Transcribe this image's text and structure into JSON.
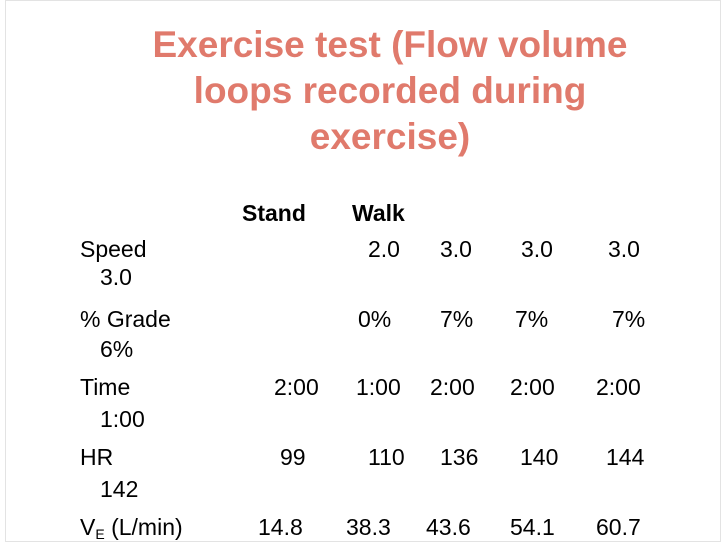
{
  "slide": {
    "title_lines": [
      "Exercise test (Flow volume",
      "loops recorded during",
      "exercise)"
    ]
  },
  "table": {
    "headers": [
      "Stand",
      "Walk"
    ],
    "rows": [
      {
        "label": "Speed",
        "values": [
          "",
          "2.0",
          "3.0",
          "3.0",
          "3.0"
        ],
        "overflow": "3.0"
      },
      {
        "label": "% Grade",
        "values": [
          "",
          "0%",
          "7%",
          "7%",
          "7%"
        ],
        "overflow": "6%"
      },
      {
        "label": "Time",
        "values": [
          "2:00",
          "1:00",
          "2:00",
          "2:00",
          "2:00"
        ],
        "overflow": "1:00"
      },
      {
        "label": "HR",
        "values": [
          "99",
          "110",
          "136",
          "140",
          "144"
        ],
        "overflow": "142"
      },
      {
        "label_main": "V",
        "label_sub": "E",
        "label_unit": " (L/min)",
        "values": [
          "14.8",
          "38.3",
          "43.6",
          "54.1",
          "60.7"
        ]
      }
    ]
  }
}
